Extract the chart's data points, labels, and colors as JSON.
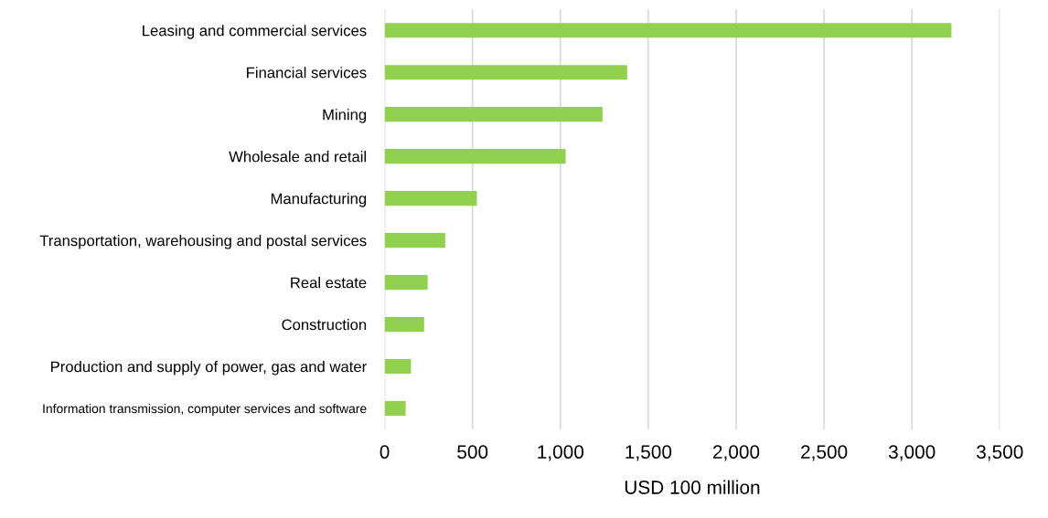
{
  "chart_data": {
    "type": "bar",
    "orientation": "horizontal",
    "categories": [
      "Leasing and commercial services",
      "Financial services",
      "Mining",
      "Wholesale and retail",
      "Manufacturing",
      "Transportation, warehousing and postal services",
      "Real estate",
      "Construction",
      "Production and supply of power, gas and water",
      "Information transmission, computer services and software"
    ],
    "values": [
      3225,
      1380,
      1240,
      1030,
      525,
      345,
      245,
      225,
      150,
      120
    ],
    "color": "#92d050",
    "xlabel": "USD 100 million",
    "xlim": [
      0,
      3500
    ],
    "xticks": [
      0,
      {
        "value": 500,
        "label": "500"
      },
      {
        "value": 1000,
        "label": "1,000"
      },
      {
        "value": 1500,
        "label": "1,500"
      },
      {
        "value": 2000,
        "label": "2,000"
      },
      {
        "value": 2500,
        "label": "2,500"
      },
      {
        "value": 3000,
        "label": "3,000"
      },
      {
        "value": 3500,
        "label": "3,500"
      }
    ],
    "grid": "x",
    "legend": false
  }
}
